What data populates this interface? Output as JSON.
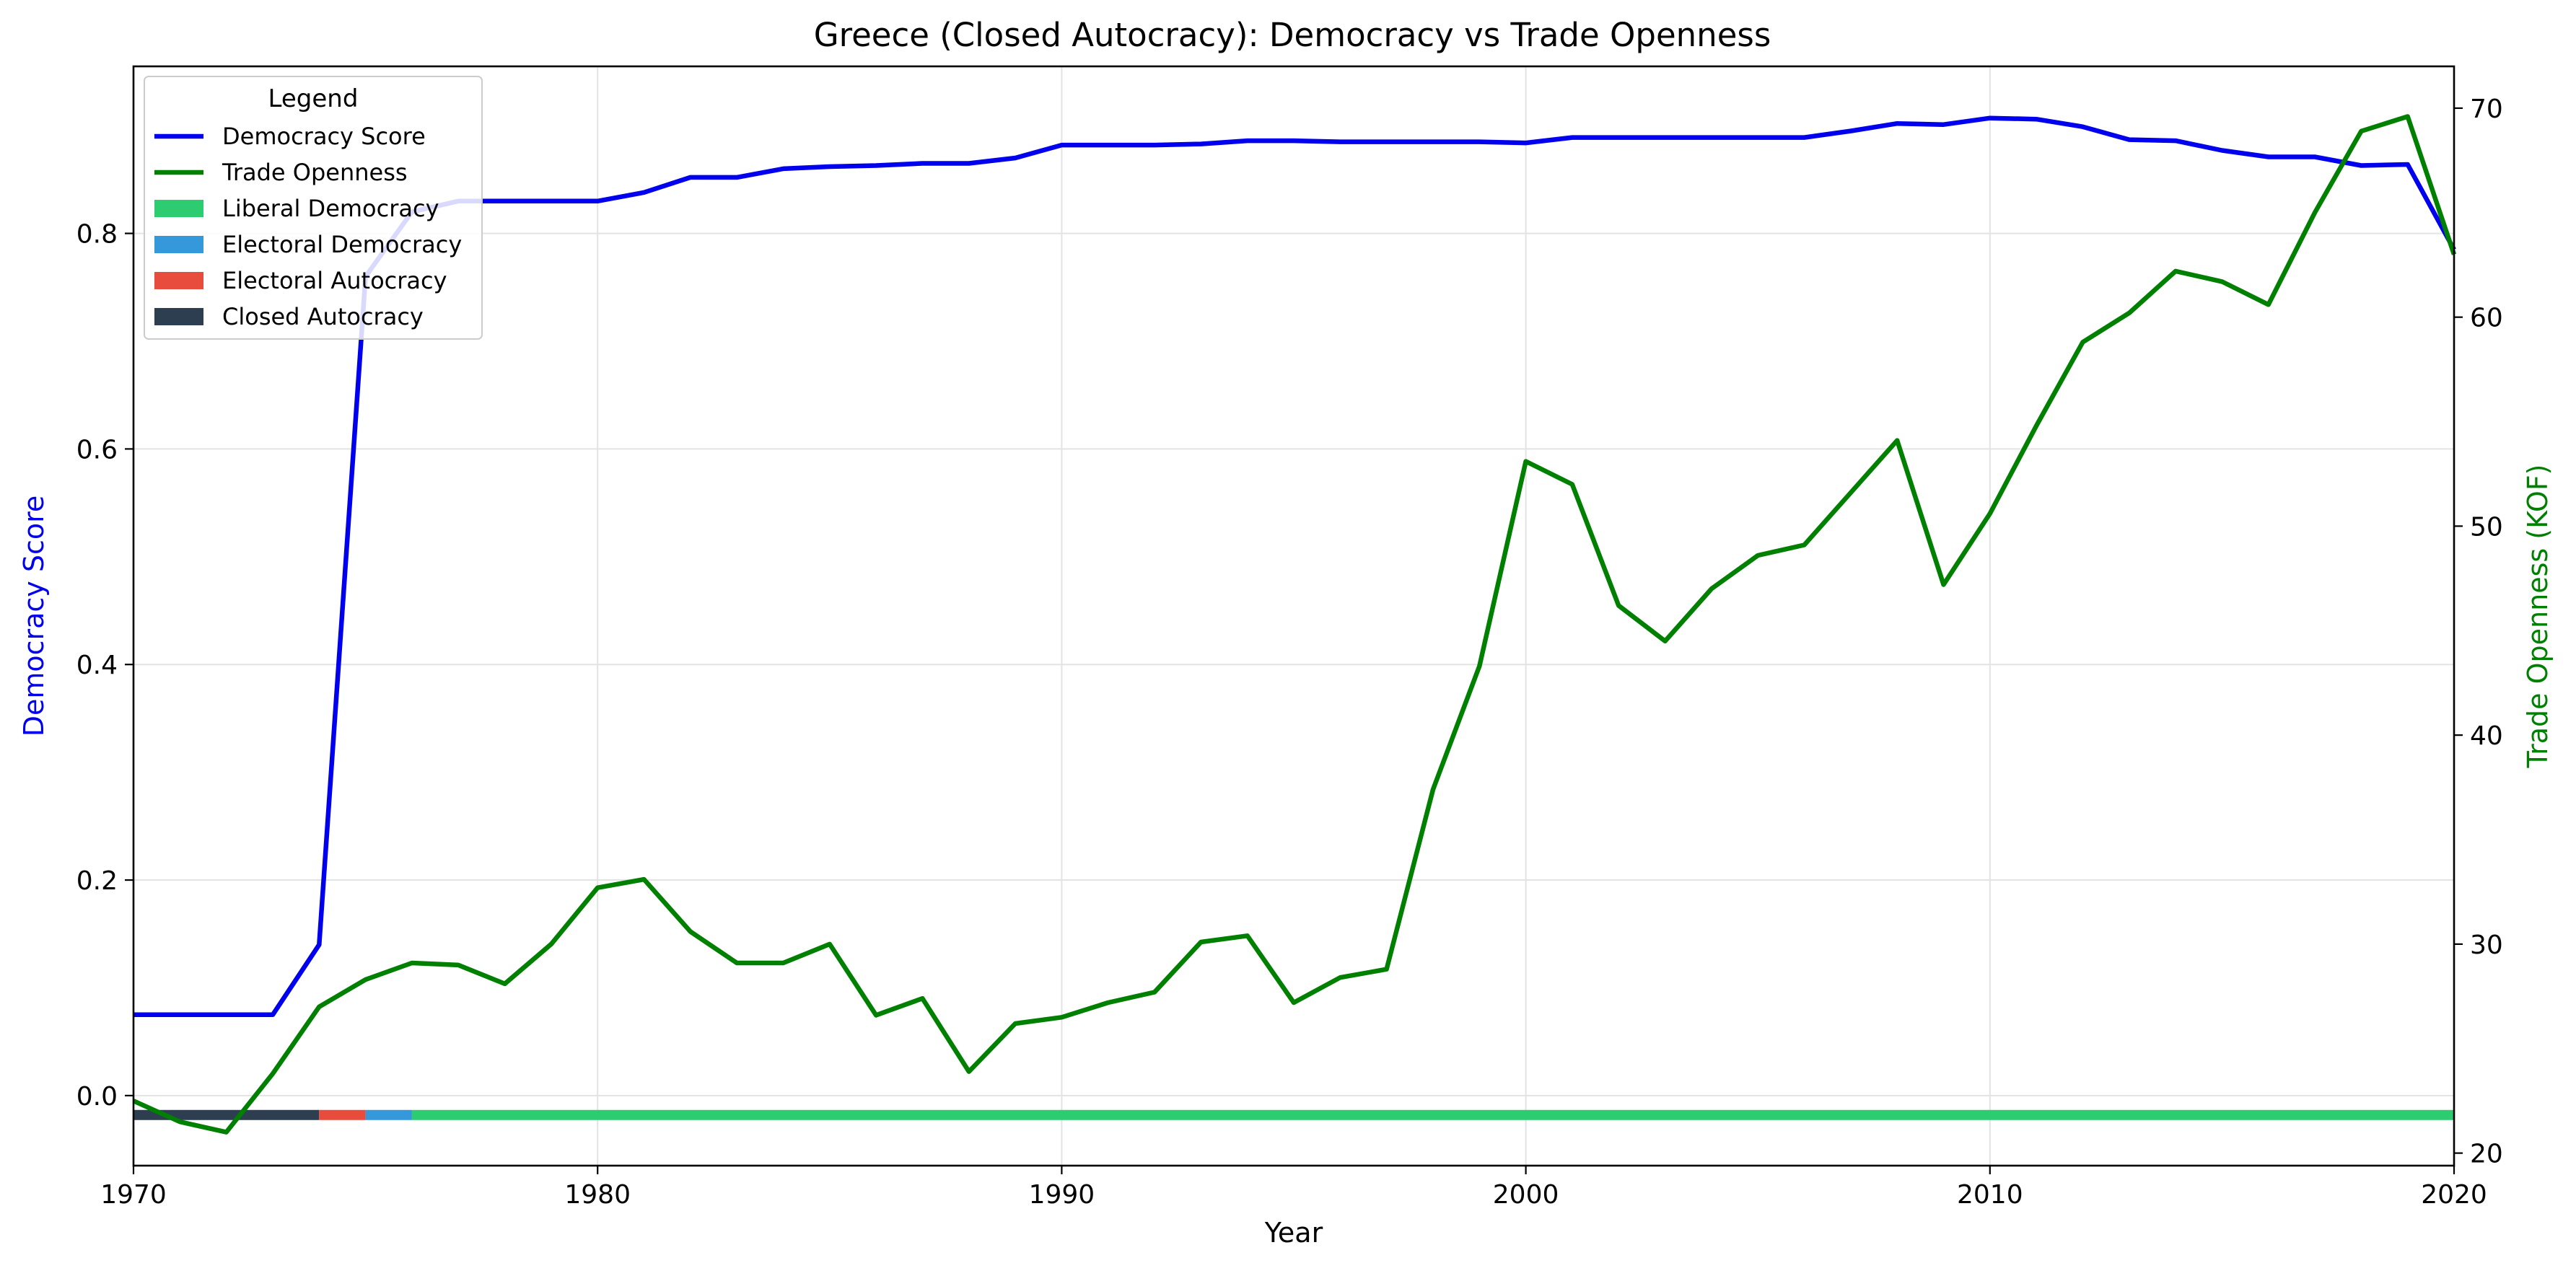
{
  "chart_data": {
    "type": "line",
    "title": "Greece (Closed Autocracy): Democracy vs Trade Openness",
    "xlabel": "Year",
    "ylabel_left": "Democracy Score",
    "ylabel_right": "Trade Openness (KOF)",
    "xlim": [
      1970,
      2020
    ],
    "ylim_left": [
      -0.065,
      0.955
    ],
    "ylim_right": [
      19.4,
      72.0
    ],
    "x_ticks": [
      1970,
      1980,
      1990,
      2000,
      2010,
      2020
    ],
    "y_left_ticks": [
      0.0,
      0.2,
      0.4,
      0.6,
      0.8
    ],
    "y_left_tick_labels": [
      "0.0",
      "0.2",
      "0.4",
      "0.6",
      "0.8"
    ],
    "y_right_ticks": [
      20,
      30,
      40,
      50,
      60,
      70
    ],
    "grid": true,
    "legend": {
      "title": "Legend",
      "placement": "top-left",
      "entries": [
        {
          "label": "Democracy Score",
          "kind": "line",
          "color": "#0000ee"
        },
        {
          "label": "Trade Openness",
          "kind": "line",
          "color": "#008000"
        },
        {
          "label": "Liberal Democracy",
          "kind": "patch",
          "color": "#2ecc71"
        },
        {
          "label": "Electoral Democracy",
          "kind": "patch",
          "color": "#3498db"
        },
        {
          "label": "Electoral Autocracy",
          "kind": "patch",
          "color": "#e74c3c"
        },
        {
          "label": "Closed Autocracy",
          "kind": "patch",
          "color": "#2c3e50"
        }
      ]
    },
    "x": [
      1970,
      1971,
      1972,
      1973,
      1974,
      1975,
      1976,
      1977,
      1978,
      1979,
      1980,
      1981,
      1982,
      1983,
      1984,
      1985,
      1986,
      1987,
      1988,
      1989,
      1990,
      1991,
      1992,
      1993,
      1994,
      1995,
      1996,
      1997,
      1998,
      1999,
      2000,
      2001,
      2002,
      2003,
      2004,
      2005,
      2006,
      2007,
      2008,
      2009,
      2010,
      2011,
      2012,
      2013,
      2014,
      2015,
      2016,
      2017,
      2018,
      2019,
      2020
    ],
    "series": [
      {
        "name": "Democracy Score",
        "axis": "left",
        "color": "#0000ee",
        "values": [
          0.075,
          0.075,
          0.075,
          0.075,
          0.14,
          0.76,
          0.82,
          0.83,
          0.83,
          0.83,
          0.83,
          0.838,
          0.852,
          0.852,
          0.86,
          0.862,
          0.863,
          0.865,
          0.865,
          0.87,
          0.882,
          0.882,
          0.882,
          0.883,
          0.886,
          0.886,
          0.885,
          0.885,
          0.885,
          0.885,
          0.884,
          0.889,
          0.889,
          0.889,
          0.889,
          0.889,
          0.889,
          0.895,
          0.902,
          0.901,
          0.907,
          0.906,
          0.899,
          0.887,
          0.886,
          0.877,
          0.871,
          0.871,
          0.863,
          0.864,
          0.785
        ]
      },
      {
        "name": "Trade Openness",
        "axis": "right",
        "color": "#008000",
        "values": [
          22.5,
          21.5,
          21.0,
          23.8,
          27.0,
          28.3,
          29.1,
          29.0,
          28.1,
          30.0,
          32.7,
          33.1,
          30.6,
          29.1,
          29.1,
          30.0,
          26.6,
          27.4,
          23.9,
          26.2,
          26.5,
          27.2,
          27.7,
          30.1,
          30.4,
          27.2,
          28.4,
          28.8,
          37.4,
          43.3,
          53.1,
          52.0,
          46.2,
          44.5,
          47.0,
          48.6,
          49.1,
          51.6,
          54.1,
          47.2,
          50.6,
          54.8,
          58.8,
          60.2,
          62.2,
          61.7,
          60.6,
          65.0,
          68.9,
          69.6,
          63.0
        ]
      }
    ],
    "regime_band": {
      "y_value": -0.018,
      "segments": [
        {
          "regime": "Closed Autocracy",
          "start": 1970,
          "end": 1974
        },
        {
          "regime": "Electoral Autocracy",
          "start": 1974,
          "end": 1975
        },
        {
          "regime": "Electoral Democracy",
          "start": 1975,
          "end": 1976
        },
        {
          "regime": "Liberal Democracy",
          "start": 1976,
          "end": 2020
        }
      ]
    },
    "colors": {
      "democracy": "#0000ee",
      "trade": "#008000",
      "left_label": "#0000ee",
      "right_label": "#008000",
      "Liberal Democracy": "#2ecc71",
      "Electoral Democracy": "#3498db",
      "Electoral Autocracy": "#e74c3c",
      "Closed Autocracy": "#2c3e50"
    }
  }
}
